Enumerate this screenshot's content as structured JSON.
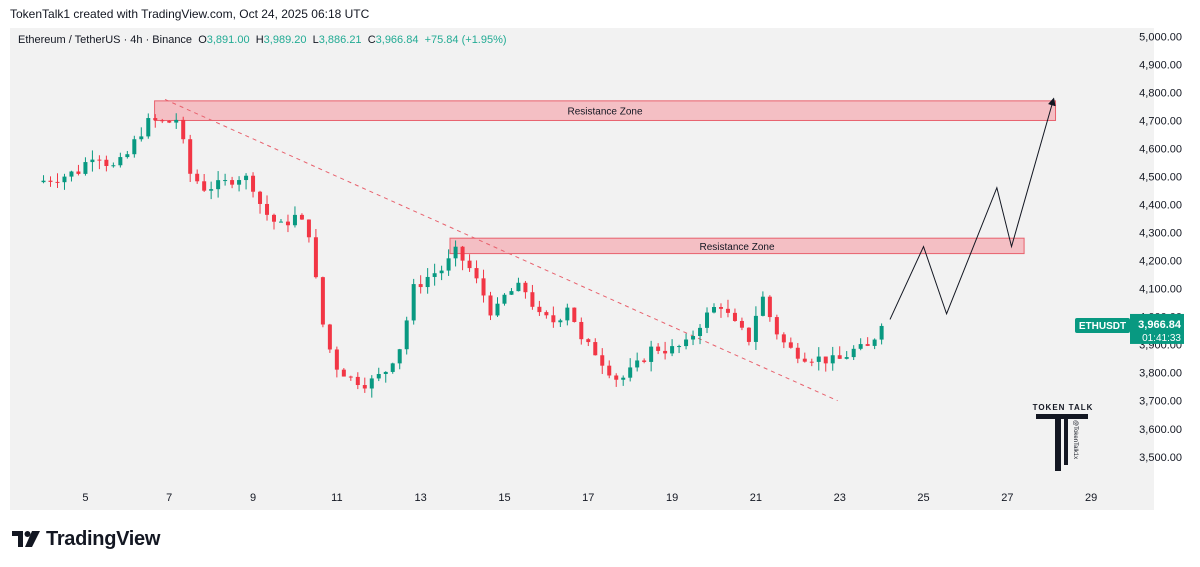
{
  "header": {
    "attribution": "TokenTalk1 created with TradingView.com, Oct 24, 2025 06:18 UTC"
  },
  "legend": {
    "symbol": "Ethereum / TetherUS · 4h · Binance",
    "open_label": "O",
    "open": "3,891.00",
    "high_label": "H",
    "high": "3,989.20",
    "low_label": "L",
    "low": "3,886.21",
    "close_label": "C",
    "close": "3,966.84",
    "change": "+75.84 (+1.95%)"
  },
  "price_tag": {
    "symbol": "ETHUSDT",
    "price": "3,966.84",
    "countdown": "01:41:33",
    "color": "#089981"
  },
  "watermark": {
    "name": "TOKEN TALK",
    "handle": "@TokenTalk1x"
  },
  "footer": {
    "brand": "TradingView"
  },
  "colors": {
    "up": "#089981",
    "down": "#f23645",
    "zone_fill": "#f4b6bc",
    "zone_border": "#e8616d",
    "background": "#f2f2f2"
  },
  "chart_data": {
    "type": "candlestick",
    "timeframe": "4h",
    "title": "Ethereum / TetherUS · 4h · Binance",
    "x_tick_labels": [
      "5",
      "7",
      "9",
      "11",
      "13",
      "15",
      "17",
      "19",
      "21",
      "23",
      "25",
      "27",
      "29"
    ],
    "y_tick_labels": [
      "3,500.00",
      "3,600.00",
      "3,700.00",
      "3,800.00",
      "3,900.00",
      "4,000.00",
      "4,100.00",
      "4,200.00",
      "4,300.00",
      "4,400.00",
      "4,500.00",
      "4,600.00",
      "4,700.00",
      "4,800.00",
      "4,900.00",
      "5,000.00"
    ],
    "xlim_day": [
      3.2,
      30.5
    ],
    "ylim": [
      3410,
      5030
    ],
    "candle_keypoints": [
      [
        4.0,
        4480
      ],
      [
        4.6,
        4500
      ],
      [
        5.0,
        4520
      ],
      [
        5.4,
        4590
      ],
      [
        5.8,
        4530
      ],
      [
        6.1,
        4560
      ],
      [
        6.4,
        4640
      ],
      [
        6.7,
        4700
      ],
      [
        7.1,
        4690
      ],
      [
        7.4,
        4710
      ],
      [
        7.6,
        4520
      ],
      [
        8.0,
        4460
      ],
      [
        8.4,
        4470
      ],
      [
        8.8,
        4500
      ],
      [
        9.1,
        4490
      ],
      [
        9.4,
        4380
      ],
      [
        9.8,
        4320
      ],
      [
        10.2,
        4360
      ],
      [
        10.5,
        4300
      ],
      [
        10.8,
        3990
      ],
      [
        11.1,
        3830
      ],
      [
        11.5,
        3780
      ],
      [
        11.9,
        3760
      ],
      [
        12.3,
        3800
      ],
      [
        12.7,
        3900
      ],
      [
        13.0,
        4100
      ],
      [
        13.4,
        4150
      ],
      [
        13.7,
        4170
      ],
      [
        14.0,
        4230
      ],
      [
        14.3,
        4180
      ],
      [
        14.6,
        4100
      ],
      [
        14.9,
        4000
      ],
      [
        15.2,
        4080
      ],
      [
        15.6,
        4110
      ],
      [
        16.0,
        4000
      ],
      [
        16.4,
        3980
      ],
      [
        16.7,
        4050
      ],
      [
        17.0,
        3910
      ],
      [
        17.3,
        3880
      ],
      [
        17.6,
        3820
      ],
      [
        17.9,
        3770
      ],
      [
        18.3,
        3820
      ],
      [
        18.7,
        3890
      ],
      [
        19.1,
        3880
      ],
      [
        19.5,
        3900
      ],
      [
        19.9,
        3990
      ],
      [
        20.3,
        4050
      ],
      [
        20.6,
        3980
      ],
      [
        21.0,
        3920
      ],
      [
        21.3,
        4080
      ],
      [
        21.6,
        3960
      ],
      [
        21.9,
        3890
      ],
      [
        22.3,
        3860
      ],
      [
        22.7,
        3850
      ],
      [
        23.1,
        3840
      ],
      [
        23.5,
        3880
      ],
      [
        23.9,
        3890
      ],
      [
        24.1,
        3966.84
      ]
    ],
    "resistance_zones": [
      {
        "label": "Resistance Zone",
        "x_day": [
          6.65,
          28.15
        ],
        "y": [
          4700,
          4770
        ]
      },
      {
        "label": "Resistance Zone",
        "x_day": [
          13.7,
          27.4
        ],
        "y": [
          4225,
          4280
        ]
      }
    ],
    "trendline": {
      "from": [
        6.9,
        4775
      ],
      "to": [
        22.95,
        3700
      ],
      "style": "dashed"
    },
    "projection_path": [
      [
        24.2,
        3990
      ],
      [
        25.0,
        4250
      ],
      [
        25.55,
        4010
      ],
      [
        26.75,
        4460
      ],
      [
        27.1,
        4250
      ],
      [
        28.1,
        4775
      ]
    ],
    "last_price": 3966.84
  }
}
